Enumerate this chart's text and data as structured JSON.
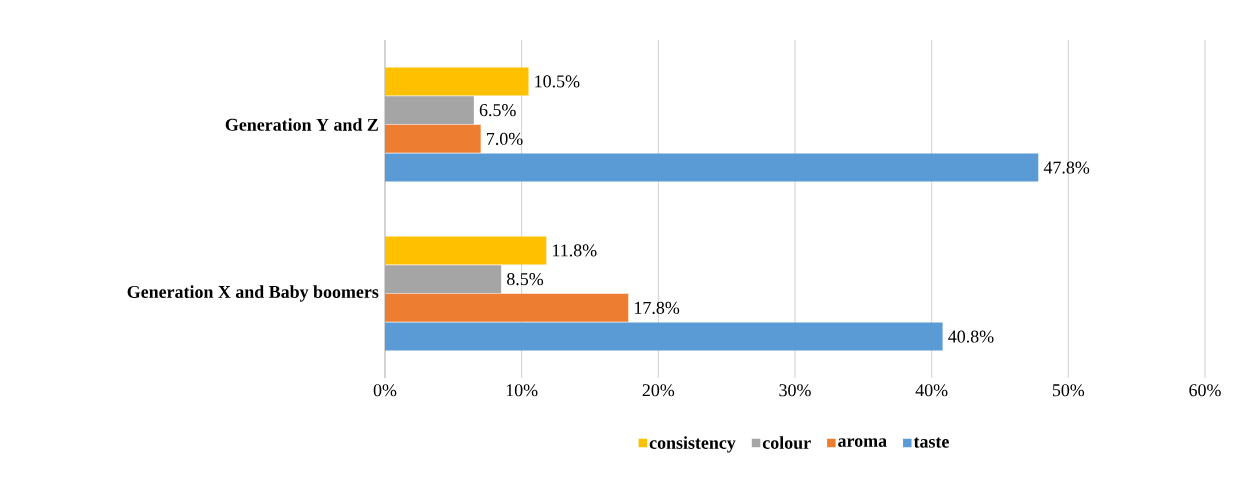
{
  "chart_data": {
    "type": "bar",
    "orientation": "horizontal",
    "categories": [
      "Generation Y and Z",
      "Generation X and Baby boomers"
    ],
    "series": [
      {
        "name": "consistency",
        "color": "#ffc000",
        "values": [
          10.5,
          11.8
        ],
        "value_labels": [
          "10.5%",
          "11.8%"
        ]
      },
      {
        "name": "colour",
        "color": "#a5a5a5",
        "values": [
          6.5,
          8.5
        ],
        "value_labels": [
          "6.5%",
          "8.5%"
        ]
      },
      {
        "name": "aroma",
        "color": "#ed7d31",
        "values": [
          7.0,
          17.8
        ],
        "value_labels": [
          "7.0%",
          "17.8%"
        ]
      },
      {
        "name": "taste",
        "color": "#5b9bd5",
        "values": [
          47.8,
          40.8
        ],
        "value_labels": [
          "47.8%",
          "40.8%"
        ]
      }
    ],
    "xlim": [
      0,
      60
    ],
    "xticks": [
      {
        "value": 0,
        "label": "0%"
      },
      {
        "value": 10,
        "label": "10%"
      },
      {
        "value": 20,
        "label": "20%"
      },
      {
        "value": 30,
        "label": "30%"
      },
      {
        "value": 40,
        "label": "40%"
      },
      {
        "value": 50,
        "label": "50%"
      },
      {
        "value": 60,
        "label": "60%"
      }
    ],
    "grid": "x",
    "legend": "bottom"
  }
}
